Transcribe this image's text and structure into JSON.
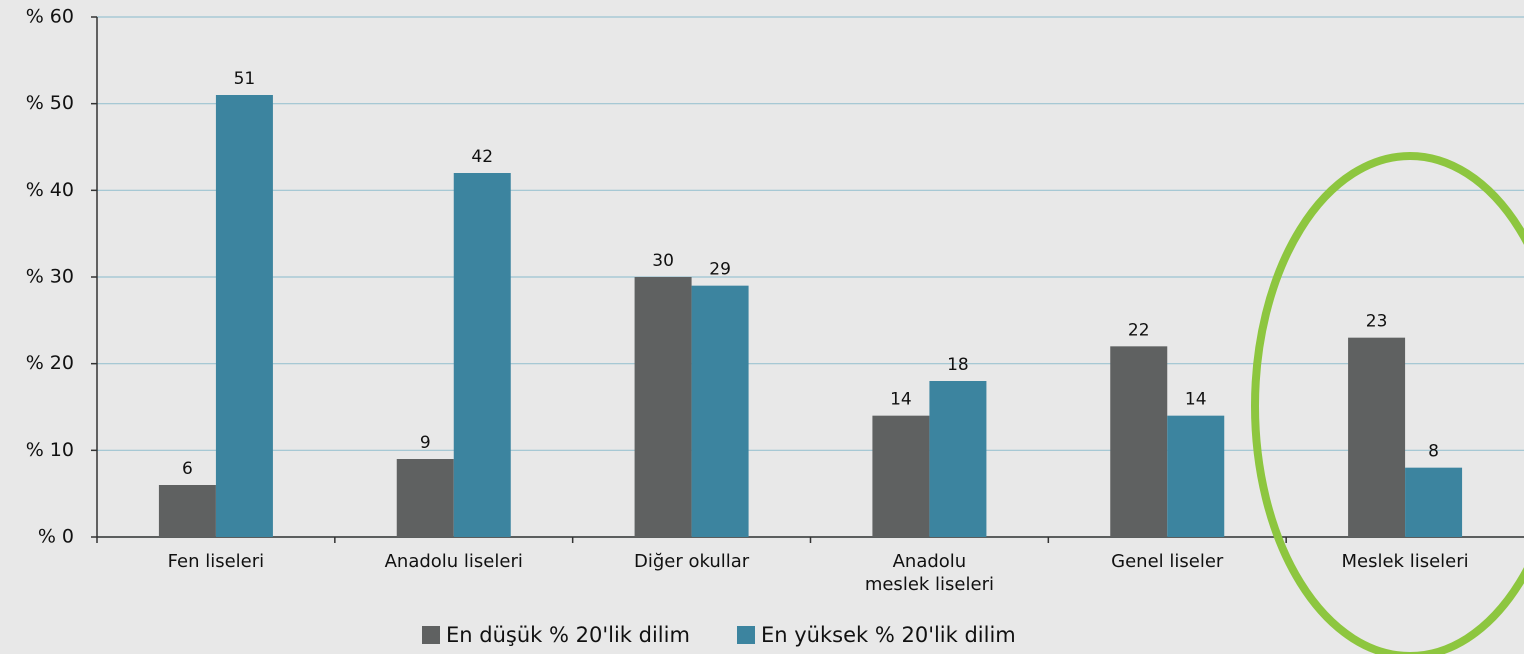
{
  "chart_data": {
    "type": "bar",
    "categories": [
      "Fen liseleri",
      "Anadolu liseleri",
      "Diğer okullar",
      "Anadolu\nmeslek liseleri",
      "Genel liseler",
      "Meslek liseleri"
    ],
    "series": [
      {
        "name": "En düşük % 20'lik dilim",
        "color": "#5f6161",
        "values": [
          6,
          9,
          30,
          14,
          22,
          23
        ]
      },
      {
        "name": "En yüksek % 20'lik dilim",
        "color": "#3c849f",
        "values": [
          51,
          42,
          29,
          18,
          14,
          8
        ]
      }
    ],
    "ylim": [
      0,
      60
    ],
    "yticks": [
      {
        "value": 0,
        "label": "% 0"
      },
      {
        "value": 10,
        "label": "% 10"
      },
      {
        "value": 20,
        "label": "% 20"
      },
      {
        "value": 30,
        "label": "% 30"
      },
      {
        "value": 40,
        "label": "% 40"
      },
      {
        "value": 50,
        "label": "% 50"
      },
      {
        "value": 60,
        "label": "% 60"
      }
    ],
    "grid": true,
    "legend": "bottom"
  }
}
